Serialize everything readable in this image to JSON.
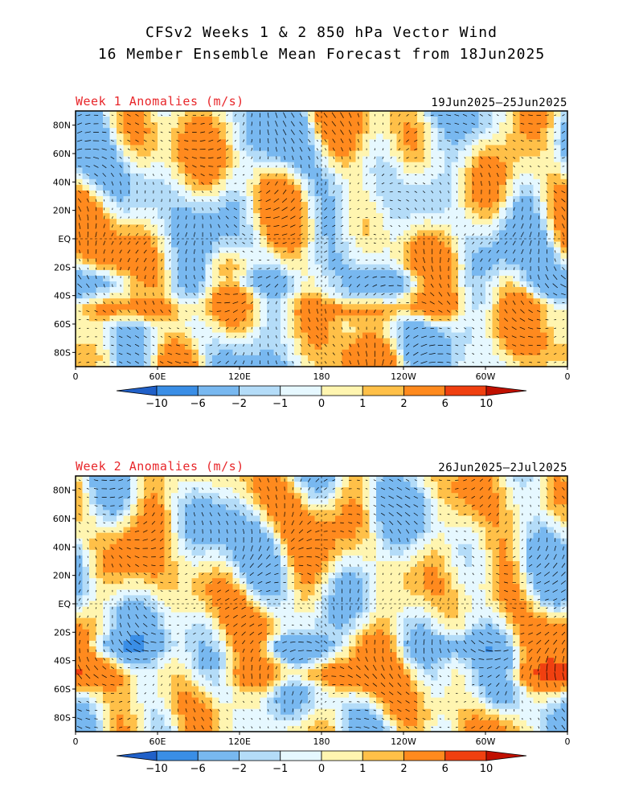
{
  "title_line1": "CFSv2 Weeks 1 & 2 850 hPa Vector Wind",
  "title_line2": "16 Member Ensemble Mean Forecast from 18Jun2025",
  "panels": [
    {
      "label": "Week 1 Anomalies (m/s)",
      "dates": "19Jun2025–25Jun2025"
    },
    {
      "label": "Week 2 Anomalies (m/s)",
      "dates": "26Jun2025–2Jul2025"
    }
  ],
  "lat_ticks": [
    "80N",
    "60N",
    "40N",
    "20N",
    "EQ",
    "20S",
    "40S",
    "60S",
    "80S"
  ],
  "lon_ticks": [
    "0",
    "60E",
    "120E",
    "180",
    "120W",
    "60W",
    "0"
  ],
  "colorbar": {
    "labels": [
      "-10",
      "-6",
      "-2",
      "-1",
      "0",
      "1",
      "2",
      "6",
      "10"
    ],
    "colors": [
      "#2060c8",
      "#3a8ee6",
      "#78b8f0",
      "#b4dcf8",
      "#e6f8ff",
      "#fff5b0",
      "#ffc048",
      "#ff8a1e",
      "#f04010",
      "#c01000"
    ]
  },
  "chart_data": {
    "type": "heatmap",
    "variable": "850 hPa vector wind anomaly",
    "units": "m/s",
    "levels": [
      -10,
      -6,
      -2,
      -1,
      0,
      1,
      2,
      6,
      10
    ],
    "lat_range": [
      -90,
      90
    ],
    "lon_range": [
      0,
      360
    ]
  }
}
